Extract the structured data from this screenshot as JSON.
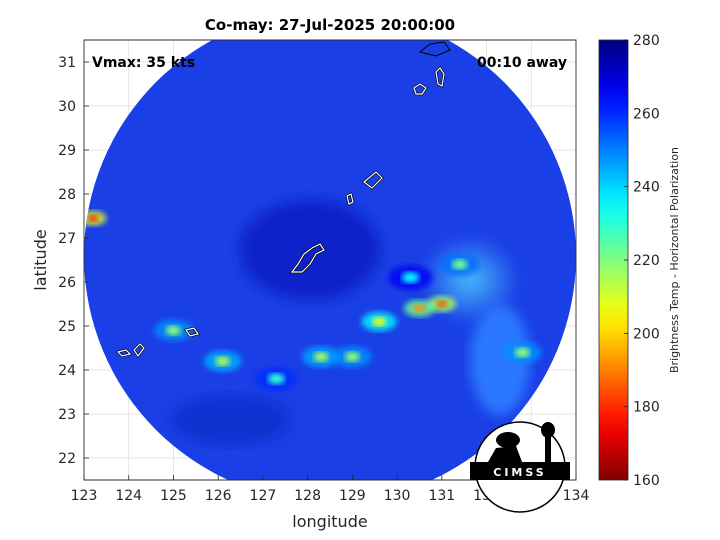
{
  "chart_data": {
    "type": "heatmap",
    "title": "Co-may: 27-Jul-2025 20:00:00",
    "xlabel": "longitude",
    "ylabel": "latitude",
    "xlim": [
      123,
      134
    ],
    "ylim": [
      21.5,
      31.5
    ],
    "xticks": [
      123,
      124,
      125,
      126,
      127,
      128,
      129,
      130,
      131,
      132,
      133,
      134
    ],
    "yticks": [
      22,
      23,
      24,
      25,
      26,
      27,
      28,
      29,
      30,
      31
    ],
    "grid": true,
    "annotations": {
      "vmax": "Vmax: 35 kts",
      "away": "00:10 away"
    },
    "colorbar": {
      "label": "Brightness Temp - Horizontal Polarization",
      "range": [
        160,
        280
      ],
      "ticks": [
        160,
        180,
        200,
        220,
        240,
        260,
        280
      ],
      "colormap": "jet"
    },
    "swath": {
      "center_lon": 128.5,
      "center_lat": 26.5,
      "radius_deg": 5.5
    },
    "features": [
      {
        "lon": 131.0,
        "lat": 25.5,
        "tb": 185
      },
      {
        "lon": 130.5,
        "lat": 25.4,
        "tb": 192
      },
      {
        "lon": 129.6,
        "lat": 25.1,
        "tb": 205
      },
      {
        "lon": 123.2,
        "lat": 27.45,
        "tb": 178
      },
      {
        "lon": 131.4,
        "lat": 26.4,
        "tb": 222
      },
      {
        "lon": 132.8,
        "lat": 24.4,
        "tb": 218
      },
      {
        "lon": 128.3,
        "lat": 24.3,
        "tb": 215
      },
      {
        "lon": 129.0,
        "lat": 24.3,
        "tb": 218
      },
      {
        "lon": 126.1,
        "lat": 24.2,
        "tb": 214
      },
      {
        "lon": 125.0,
        "lat": 24.9,
        "tb": 218
      },
      {
        "lon": 127.3,
        "lat": 23.8,
        "tb": 230
      },
      {
        "lon": 130.3,
        "lat": 26.1,
        "tb": 236
      }
    ]
  },
  "logo": {
    "text": "CIMSS"
  }
}
